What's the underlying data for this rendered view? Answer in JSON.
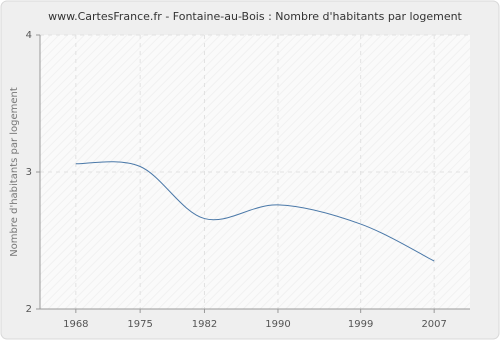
{
  "chart_data": {
    "type": "line",
    "title": "www.CartesFrance.fr - Fontaine-au-Bois : Nombre d'habitants par logement",
    "y_label": "Nombre d'habitants par logement",
    "x": [
      1968,
      1975,
      1982,
      1990,
      1999,
      2007
    ],
    "series": [
      {
        "name": "Nombre d'habitants par logement",
        "color": "#4a78a8",
        "values": [
          3.06,
          3.04,
          2.66,
          2.76,
          2.62,
          2.35
        ]
      }
    ],
    "xlim": [
      1964.1,
      2010.9
    ],
    "xticks": [
      1968,
      1975,
      1982,
      1990,
      1999,
      2007
    ],
    "ylim": [
      2,
      4
    ],
    "yticks": [
      2,
      3,
      4
    ],
    "grid": true
  }
}
